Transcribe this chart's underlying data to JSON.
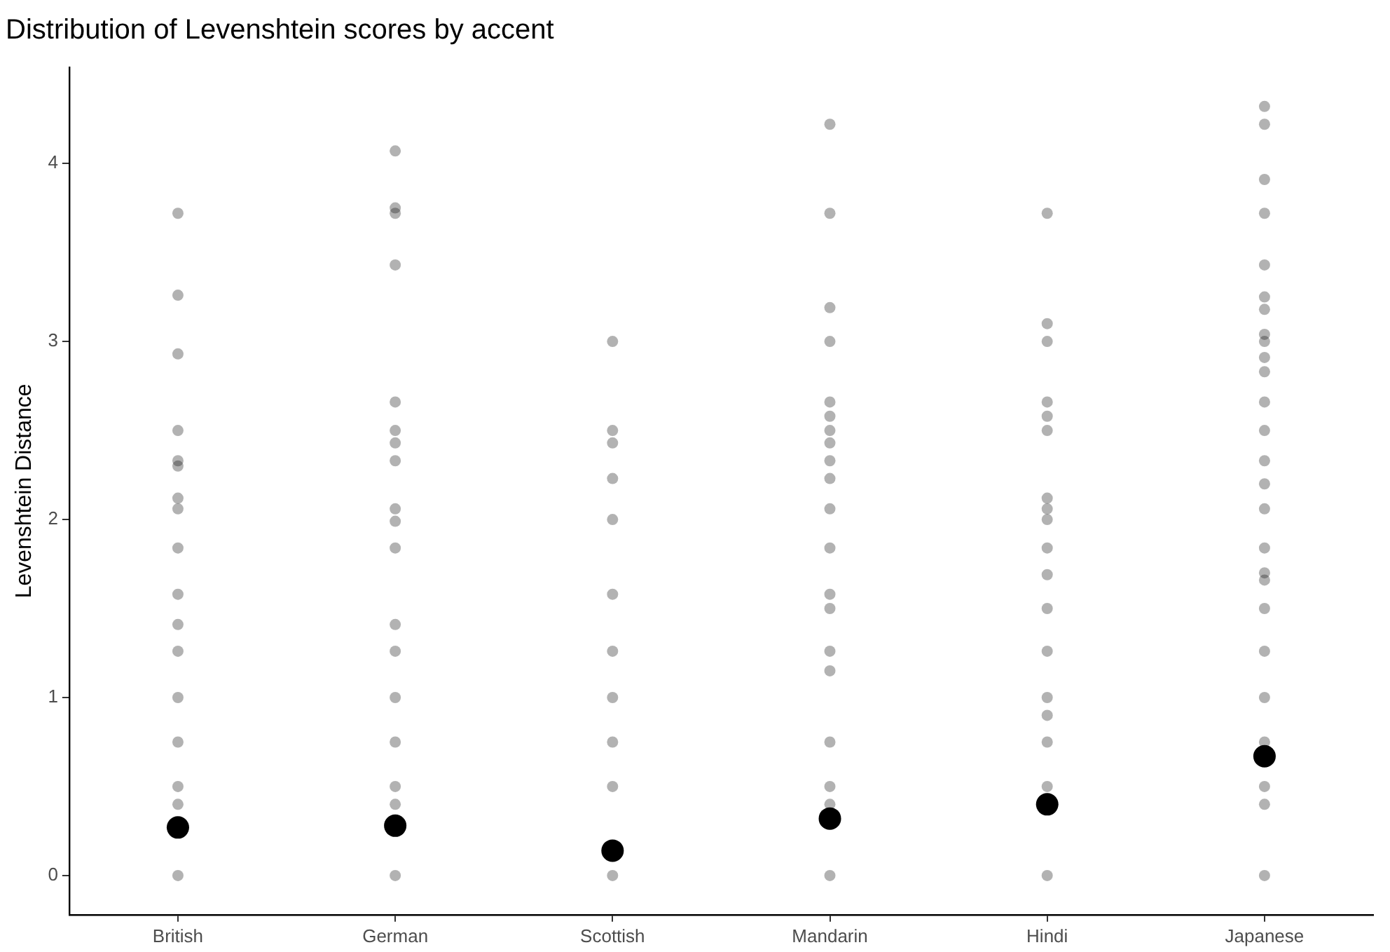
{
  "chart_data": {
    "type": "scatter",
    "title": "Distribution of Levenshtein scores by accent",
    "ylabel": "Levenshtein Distance",
    "categories": [
      "British",
      "German",
      "Scottish",
      "Mandarin",
      "Hindi",
      "Japanese"
    ],
    "ylim": [
      -0.22,
      4.54
    ],
    "yticks": [
      0,
      1,
      2,
      3,
      4
    ],
    "grid": false,
    "legend": false,
    "marker": "circle",
    "series": [
      {
        "type": "scatter",
        "color": "#000000",
        "x": [
          "British",
          "British",
          "British",
          "British",
          "British",
          "British",
          "British",
          "British",
          "British",
          "British",
          "British",
          "British",
          "British",
          "British",
          "British",
          "British",
          "British"
        ],
        "values": [
          3.72,
          3.26,
          2.93,
          2.5,
          2.33,
          2.3,
          2.12,
          2.06,
          1.84,
          1.58,
          1.41,
          1.26,
          1.0,
          0.75,
          0.5,
          0.4,
          0
        ]
      },
      {
        "type": "scatter",
        "color": "#000000",
        "x": [
          "German",
          "German",
          "German",
          "German",
          "German",
          "German",
          "German",
          "German",
          "German",
          "German",
          "German",
          "German",
          "German",
          "German",
          "German",
          "German",
          "German",
          "German"
        ],
        "values": [
          4.07,
          3.75,
          3.72,
          3.43,
          2.66,
          2.5,
          2.43,
          2.33,
          2.06,
          1.99,
          1.84,
          1.41,
          1.26,
          1.0,
          0.75,
          0.5,
          0.4,
          0
        ]
      },
      {
        "type": "scatter",
        "color": "#000000",
        "x": [
          "Scottish",
          "Scottish",
          "Scottish",
          "Scottish",
          "Scottish",
          "Scottish",
          "Scottish",
          "Scottish",
          "Scottish",
          "Scottish",
          "Scottish"
        ],
        "values": [
          3.0,
          2.5,
          2.43,
          2.23,
          2.0,
          1.58,
          1.26,
          1.0,
          0.75,
          0.5,
          0
        ]
      },
      {
        "type": "scatter",
        "color": "#000000",
        "x": [
          "Mandarin",
          "Mandarin",
          "Mandarin",
          "Mandarin",
          "Mandarin",
          "Mandarin",
          "Mandarin",
          "Mandarin",
          "Mandarin",
          "Mandarin",
          "Mandarin",
          "Mandarin",
          "Mandarin",
          "Mandarin",
          "Mandarin",
          "Mandarin",
          "Mandarin",
          "Mandarin",
          "Mandarin",
          "Mandarin"
        ],
        "values": [
          4.22,
          3.72,
          3.19,
          3.0,
          2.66,
          2.58,
          2.5,
          2.43,
          2.33,
          2.23,
          2.06,
          1.84,
          1.58,
          1.5,
          1.26,
          1.15,
          0.75,
          0.5,
          0.4,
          0
        ]
      },
      {
        "type": "scatter",
        "color": "#000000",
        "x": [
          "Hindi",
          "Hindi",
          "Hindi",
          "Hindi",
          "Hindi",
          "Hindi",
          "Hindi",
          "Hindi",
          "Hindi",
          "Hindi",
          "Hindi",
          "Hindi",
          "Hindi",
          "Hindi",
          "Hindi",
          "Hindi",
          "Hindi",
          "Hindi"
        ],
        "values": [
          3.72,
          3.1,
          3.0,
          2.66,
          2.58,
          2.5,
          2.12,
          2.06,
          2.0,
          1.84,
          1.69,
          1.5,
          1.26,
          1.0,
          0.9,
          0.75,
          0.5,
          0
        ]
      },
      {
        "type": "scatter",
        "color": "#000000",
        "x": [
          "Japanese",
          "Japanese",
          "Japanese",
          "Japanese",
          "Japanese",
          "Japanese",
          "Japanese",
          "Japanese",
          "Japanese",
          "Japanese",
          "Japanese",
          "Japanese",
          "Japanese",
          "Japanese",
          "Japanese",
          "Japanese",
          "Japanese",
          "Japanese",
          "Japanese",
          "Japanese",
          "Japanese",
          "Japanese",
          "Japanese",
          "Japanese",
          "Japanese",
          "Japanese"
        ],
        "values": [
          4.32,
          4.22,
          3.91,
          3.72,
          3.43,
          3.25,
          3.18,
          3.04,
          3.0,
          2.91,
          2.83,
          2.66,
          2.5,
          2.33,
          2.2,
          2.06,
          1.84,
          1.7,
          1.66,
          1.5,
          1.26,
          1.0,
          0.75,
          0.5,
          0.4,
          0
        ]
      },
      {
        "type": "scatter",
        "color": "#000000",
        "x": [
          "British",
          "German",
          "Scottish",
          "Mandarin",
          "Hindi",
          "Japanese"
        ],
        "values": [
          0.27,
          0.28,
          0.14,
          0.32,
          0.4,
          0.67
        ]
      }
    ]
  }
}
